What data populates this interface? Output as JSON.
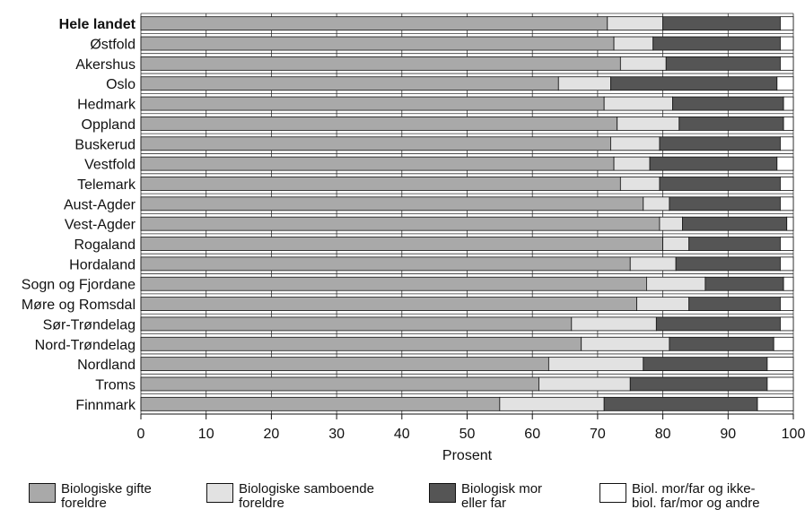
{
  "chart_data": {
    "type": "bar",
    "stacked": true,
    "orientation": "horizontal",
    "categories": [
      "Hele landet",
      "Østfold",
      "Akershus",
      "Oslo",
      "Hedmark",
      "Oppland",
      "Buskerud",
      "Vestfold",
      "Telemark",
      "Aust-Agder",
      "Vest-Agder",
      "Rogaland",
      "Hordaland",
      "Sogn og Fjordane",
      "Møre og Romsdal",
      "Sør-Trøndelag",
      "Nord-Trøndelag",
      "Nordland",
      "Troms",
      "Finnmark"
    ],
    "series": [
      {
        "name": "Biologiske gifte foreldre",
        "color": "#a9a9a9",
        "values": [
          71.5,
          72.5,
          73.5,
          64,
          71,
          73,
          72,
          72.5,
          73.5,
          77,
          79.5,
          80,
          75,
          77.5,
          76,
          66,
          67.5,
          62.5,
          61,
          55
        ]
      },
      {
        "name": "Biologiske samboende foreldre",
        "color": "#e2e2e2",
        "values": [
          8.5,
          6,
          7,
          8,
          10.5,
          9.5,
          7.5,
          5.5,
          6,
          4,
          3.5,
          4,
          7,
          9,
          8,
          13,
          13.5,
          14.5,
          14,
          16
        ]
      },
      {
        "name": "Biologisk mor eller far",
        "color": "#555555",
        "values": [
          18,
          19.5,
          17.5,
          25.5,
          17,
          16,
          18.5,
          19.5,
          18.5,
          17,
          16,
          14,
          16,
          12,
          14,
          19,
          16,
          19,
          21,
          23.5
        ]
      },
      {
        "name": "Biol. mor/far og ikke- biol. far/mor og andre",
        "color": "#ffffff",
        "values": [
          2,
          2,
          2,
          2.5,
          1.5,
          1.5,
          2,
          2.5,
          2,
          2,
          1,
          2,
          2,
          1.5,
          2,
          2,
          3,
          4,
          4,
          5.5
        ]
      }
    ],
    "xlabel": "Prosent",
    "ylabel": "",
    "xlim": [
      0,
      100
    ],
    "xticks": [
      0,
      10,
      20,
      30,
      40,
      50,
      60,
      70,
      80,
      90,
      100
    ],
    "grid": true,
    "legend_position": "bottom",
    "bold_category": "Hele landet"
  },
  "legend": [
    {
      "label": "Biologiske gifte\nforeldre",
      "color": "#a9a9a9"
    },
    {
      "label": "Biologiske samboende\nforeldre",
      "color": "#e2e2e2"
    },
    {
      "label": "Biologisk mor\neller far",
      "color": "#555555"
    },
    {
      "label": "Biol. mor/far og ikke-\nbiol. far/mor og andre",
      "color": "#ffffff"
    }
  ]
}
